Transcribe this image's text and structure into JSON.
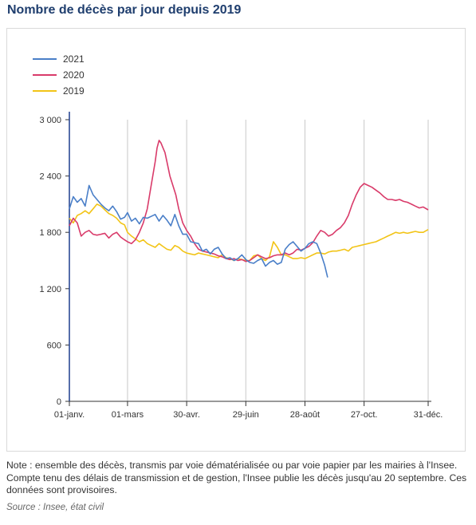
{
  "title": "Nombre de décès par jour depuis 2019",
  "note": "Note : ensemble des décès, transmis par voie dématérialisée ou par voie papier par les mairies à l'Insee. Compte tenu des délais de transmission et de gestion, l'Insee publie les décès jusqu'au 20 septembre. Ces données sont provisoires.",
  "source": "Source : Insee, état civil",
  "chart_data": {
    "type": "line",
    "title": "",
    "xlabel": "",
    "ylabel": "",
    "x_unit": "day of year",
    "xlim": [
      1,
      365
    ],
    "ylim": [
      0,
      3000
    ],
    "y_ticks": [
      0,
      600,
      1200,
      1800,
      2400,
      3000
    ],
    "y_tick_labels": [
      "0",
      "600",
      "1 200",
      "1 800",
      "2 400",
      "3 000"
    ],
    "x_ticks": [
      1,
      60,
      120,
      180,
      240,
      300,
      365
    ],
    "x_tick_labels": [
      "01-janv.",
      "01-mars",
      "30-avr.",
      "29-juin",
      "28-août",
      "27-oct.",
      "31-déc."
    ],
    "grid": "vertical",
    "legend_position": "top-left",
    "series": [
      {
        "name": "2021",
        "color": "#4a7fc8",
        "x": [
          1,
          5,
          9,
          13,
          17,
          21,
          25,
          29,
          33,
          37,
          41,
          45,
          49,
          53,
          57,
          60,
          64,
          68,
          72,
          76,
          80,
          84,
          88,
          92,
          96,
          100,
          104,
          108,
          112,
          116,
          120,
          124,
          128,
          132,
          136,
          140,
          144,
          148,
          152,
          156,
          160,
          164,
          168,
          172,
          176,
          180,
          184,
          188,
          192,
          196,
          200,
          204,
          208,
          212,
          216,
          220,
          224,
          228,
          232,
          236,
          240,
          244,
          248,
          252,
          256,
          260,
          263
        ],
        "values": [
          2050,
          2180,
          2120,
          2160,
          2080,
          2300,
          2200,
          2150,
          2100,
          2060,
          2030,
          2080,
          2020,
          1940,
          1960,
          2010,
          1920,
          1950,
          1890,
          1960,
          1950,
          1970,
          1990,
          1920,
          1980,
          1930,
          1870,
          1990,
          1870,
          1780,
          1780,
          1700,
          1690,
          1680,
          1600,
          1620,
          1570,
          1620,
          1640,
          1570,
          1520,
          1530,
          1500,
          1520,
          1560,
          1510,
          1480,
          1470,
          1500,
          1520,
          1440,
          1480,
          1500,
          1460,
          1480,
          1620,
          1670,
          1700,
          1650,
          1600,
          1630,
          1680,
          1700,
          1680,
          1580,
          1450,
          1320
        ]
      },
      {
        "name": "2020",
        "color": "#d93b6a",
        "x": [
          1,
          5,
          9,
          13,
          17,
          21,
          25,
          29,
          33,
          37,
          41,
          45,
          49,
          53,
          57,
          60,
          64,
          68,
          72,
          76,
          80,
          84,
          88,
          90,
          92,
          94,
          96,
          98,
          100,
          103,
          106,
          109,
          112,
          116,
          120,
          124,
          128,
          132,
          136,
          140,
          144,
          148,
          152,
          156,
          160,
          164,
          168,
          172,
          176,
          180,
          184,
          188,
          192,
          196,
          200,
          204,
          208,
          212,
          216,
          220,
          224,
          228,
          232,
          236,
          240,
          244,
          248,
          252,
          256,
          260,
          264,
          268,
          272,
          276,
          280,
          284,
          288,
          292,
          296,
          300,
          304,
          308,
          312,
          316,
          320,
          324,
          328,
          332,
          336,
          340,
          344,
          348,
          352,
          356,
          360,
          365
        ],
        "values": [
          1870,
          1950,
          1900,
          1760,
          1800,
          1820,
          1780,
          1770,
          1780,
          1790,
          1740,
          1780,
          1800,
          1750,
          1720,
          1700,
          1680,
          1720,
          1800,
          1900,
          2050,
          2300,
          2550,
          2700,
          2780,
          2750,
          2700,
          2650,
          2550,
          2400,
          2300,
          2200,
          2050,
          1900,
          1820,
          1760,
          1680,
          1620,
          1600,
          1590,
          1580,
          1570,
          1550,
          1540,
          1520,
          1510,
          1520,
          1500,
          1510,
          1490,
          1500,
          1530,
          1560,
          1540,
          1520,
          1530,
          1550,
          1560,
          1560,
          1580,
          1560,
          1580,
          1620,
          1610,
          1630,
          1650,
          1690,
          1760,
          1820,
          1800,
          1760,
          1780,
          1820,
          1850,
          1900,
          1980,
          2100,
          2200,
          2280,
          2320,
          2300,
          2280,
          2250,
          2220,
          2180,
          2150,
          2150,
          2140,
          2150,
          2130,
          2120,
          2100,
          2080,
          2060,
          2070,
          2040
        ]
      },
      {
        "name": "2019",
        "color": "#f2c417",
        "x": [
          1,
          5,
          9,
          13,
          17,
          21,
          25,
          29,
          33,
          37,
          41,
          45,
          49,
          53,
          57,
          60,
          64,
          68,
          72,
          76,
          80,
          84,
          88,
          92,
          96,
          100,
          104,
          108,
          112,
          116,
          120,
          124,
          128,
          132,
          136,
          140,
          144,
          148,
          152,
          156,
          160,
          164,
          168,
          172,
          176,
          180,
          184,
          188,
          192,
          196,
          200,
          204,
          208,
          212,
          216,
          220,
          224,
          228,
          232,
          236,
          240,
          244,
          248,
          252,
          256,
          260,
          264,
          268,
          272,
          276,
          280,
          284,
          288,
          292,
          296,
          300,
          304,
          308,
          312,
          316,
          320,
          324,
          328,
          332,
          336,
          340,
          344,
          348,
          352,
          356,
          360,
          365
        ],
        "values": [
          1950,
          1900,
          1980,
          2000,
          2030,
          2000,
          2050,
          2100,
          2080,
          2040,
          2000,
          1980,
          1950,
          1900,
          1880,
          1800,
          1760,
          1730,
          1700,
          1720,
          1680,
          1660,
          1640,
          1680,
          1650,
          1620,
          1610,
          1660,
          1640,
          1600,
          1580,
          1570,
          1560,
          1580,
          1570,
          1560,
          1550,
          1540,
          1530,
          1560,
          1530,
          1520,
          1500,
          1520,
          1510,
          1500,
          1500,
          1550,
          1560,
          1520,
          1500,
          1540,
          1700,
          1640,
          1560,
          1560,
          1540,
          1520,
          1520,
          1530,
          1520,
          1540,
          1560,
          1580,
          1580,
          1570,
          1590,
          1600,
          1600,
          1610,
          1620,
          1600,
          1640,
          1650,
          1660,
          1670,
          1680,
          1690,
          1700,
          1720,
          1740,
          1760,
          1780,
          1800,
          1790,
          1800,
          1790,
          1800,
          1810,
          1800,
          1800,
          1830
        ]
      }
    ]
  }
}
